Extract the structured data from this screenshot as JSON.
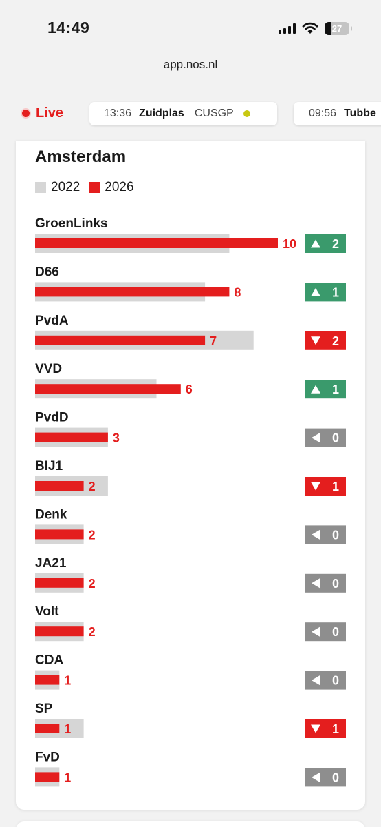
{
  "status_bar": {
    "time": "14:49",
    "battery": "27"
  },
  "browser": {
    "url": "app.nos.nl"
  },
  "live": {
    "label": "Live",
    "tickers": [
      {
        "time": "13:36",
        "place": "Zuidplas",
        "party": "CUSGP",
        "dot_color": "#c8c812"
      },
      {
        "time": "09:56",
        "place": "Tubbe"
      }
    ]
  },
  "colors": {
    "bar_2022": "#d6d6d6",
    "bar_2026": "#e41e1e",
    "up": "#3a9a6c",
    "down": "#e41e1e",
    "same": "#8e8e8e"
  },
  "chart_data": {
    "type": "bar",
    "title": "Amsterdam",
    "orientation": "horizontal",
    "legend": [
      "2022",
      "2026"
    ],
    "legend_position": "top-left",
    "categories": [
      "GroenLinks",
      "D66",
      "PvdA",
      "VVD",
      "PvdD",
      "BIJ1",
      "Denk",
      "JA21",
      "Volt",
      "CDA",
      "SP",
      "FvD"
    ],
    "series": [
      {
        "name": "2022",
        "values": [
          8,
          7,
          9,
          5,
          3,
          3,
          2,
          2,
          2,
          1,
          2,
          1
        ]
      },
      {
        "name": "2026",
        "values": [
          10,
          8,
          7,
          6,
          3,
          2,
          2,
          2,
          2,
          1,
          1,
          1
        ]
      }
    ],
    "changes": [
      {
        "direction": "up",
        "value": "2"
      },
      {
        "direction": "up",
        "value": "1"
      },
      {
        "direction": "down",
        "value": "2"
      },
      {
        "direction": "up",
        "value": "1"
      },
      {
        "direction": "same",
        "value": "0"
      },
      {
        "direction": "down",
        "value": "1"
      },
      {
        "direction": "same",
        "value": "0"
      },
      {
        "direction": "same",
        "value": "0"
      },
      {
        "direction": "same",
        "value": "0"
      },
      {
        "direction": "same",
        "value": "0"
      },
      {
        "direction": "down",
        "value": "1"
      },
      {
        "direction": "same",
        "value": "0"
      }
    ],
    "grid": false
  }
}
